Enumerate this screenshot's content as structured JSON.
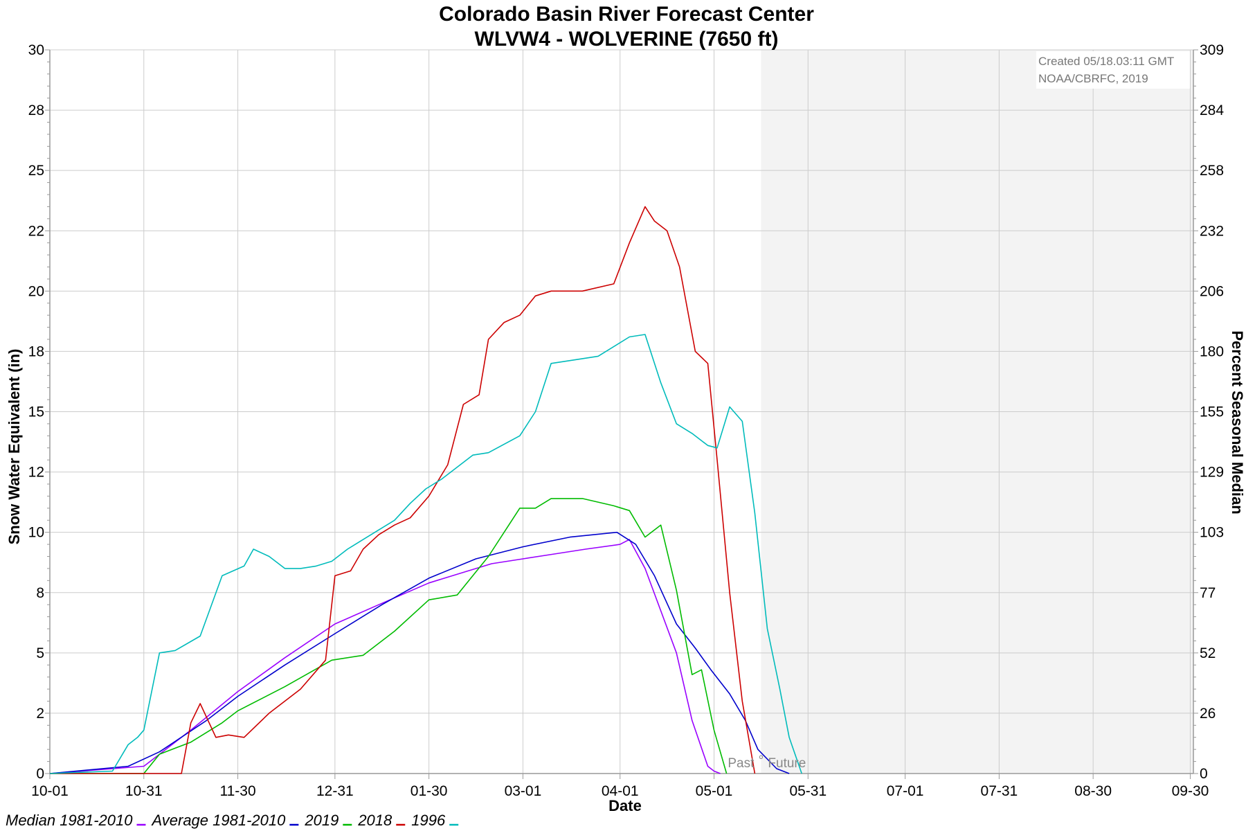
{
  "chart_data": {
    "type": "line",
    "title": "Colorado Basin River Forecast Center",
    "subtitle": "WLVW4 - WOLVERINE (7650 ft)",
    "xlabel": "Date",
    "ylabel": "Snow Water Equivalent (in)",
    "y2label": "Percent Seasonal Median",
    "xlim": [
      0,
      365
    ],
    "ylim": [
      0,
      30
    ],
    "x_ticks": [
      {
        "day": 0,
        "label": "10-01"
      },
      {
        "day": 30,
        "label": "10-31"
      },
      {
        "day": 60,
        "label": "11-30"
      },
      {
        "day": 91,
        "label": "12-31"
      },
      {
        "day": 121,
        "label": "01-30"
      },
      {
        "day": 151,
        "label": "03-01"
      },
      {
        "day": 182,
        "label": "04-01"
      },
      {
        "day": 212,
        "label": "05-01"
      },
      {
        "day": 242,
        "label": "05-31"
      },
      {
        "day": 273,
        "label": "07-01"
      },
      {
        "day": 303,
        "label": "07-31"
      },
      {
        "day": 333,
        "label": "08-30"
      },
      {
        "day": 364,
        "label": "09-30"
      }
    ],
    "y_ticks": [
      {
        "value": 0,
        "label": "0"
      },
      {
        "value": 2.5,
        "label": "2"
      },
      {
        "value": 5,
        "label": "5"
      },
      {
        "value": 7.5,
        "label": "8"
      },
      {
        "value": 10,
        "label": "10"
      },
      {
        "value": 12.5,
        "label": "12"
      },
      {
        "value": 15,
        "label": "15"
      },
      {
        "value": 17.5,
        "label": "18"
      },
      {
        "value": 20,
        "label": "20"
      },
      {
        "value": 22.5,
        "label": "22"
      },
      {
        "value": 25,
        "label": "25"
      },
      {
        "value": 27.5,
        "label": "28"
      },
      {
        "value": 30,
        "label": "30"
      }
    ],
    "y2_ticks": [
      {
        "value": 0,
        "label": "0"
      },
      {
        "value": 2.5,
        "label": "26"
      },
      {
        "value": 5,
        "label": "52"
      },
      {
        "value": 7.5,
        "label": "77"
      },
      {
        "value": 10,
        "label": "103"
      },
      {
        "value": 12.5,
        "label": "129"
      },
      {
        "value": 15,
        "label": "155"
      },
      {
        "value": 17.5,
        "label": "180"
      },
      {
        "value": 20,
        "label": "206"
      },
      {
        "value": 22.5,
        "label": "232"
      },
      {
        "value": 25,
        "label": "258"
      },
      {
        "value": 27.5,
        "label": "284"
      },
      {
        "value": 30,
        "label": "309"
      }
    ],
    "grid": true,
    "future_shading_start_day": 227,
    "past_label": "Past",
    "future_label": "Future",
    "annotation": [
      "Created 05/18.03:11 GMT",
      "NOAA/CBRFC, 2019"
    ],
    "series": [
      {
        "name": "Median 1981-2010",
        "color": "#9900ff",
        "x": [
          0,
          30,
          45,
          60,
          75,
          91,
          105,
          121,
          131,
          141,
          151,
          161,
          171,
          182,
          185,
          190,
          200,
          205,
          210,
          212,
          214
        ],
        "y": [
          0,
          0.3,
          1.8,
          3.4,
          4.8,
          6.2,
          7.0,
          7.9,
          8.3,
          8.7,
          8.9,
          9.1,
          9.3,
          9.5,
          9.7,
          8.5,
          5.0,
          2.2,
          0.3,
          0.1,
          0
        ]
      },
      {
        "name": "Average 1981-2010",
        "color": "#0000cc",
        "x": [
          0,
          25,
          35,
          50,
          60,
          75,
          91,
          106,
          121,
          136,
          151,
          166,
          181,
          187,
          193,
          200,
          206,
          211,
          217,
          222,
          226,
          232,
          236
        ],
        "y": [
          0,
          0.3,
          0.9,
          2.2,
          3.2,
          4.5,
          5.8,
          7.0,
          8.1,
          8.9,
          9.4,
          9.8,
          10.0,
          9.5,
          8.2,
          6.2,
          5.2,
          4.3,
          3.3,
          2.2,
          1.0,
          0.2,
          0
        ]
      },
      {
        "name": "2019",
        "color": "#00bb00",
        "x": [
          0,
          30,
          35,
          45,
          55,
          60,
          75,
          90,
          100,
          110,
          121,
          130,
          140,
          150,
          155,
          160,
          170,
          180,
          185,
          190,
          195,
          200,
          205,
          208,
          212,
          216
        ],
        "y": [
          0,
          0,
          0.8,
          1.3,
          2.1,
          2.6,
          3.6,
          4.7,
          4.9,
          5.9,
          7.2,
          7.4,
          9.0,
          11.0,
          11.0,
          11.4,
          11.4,
          11.1,
          10.9,
          9.8,
          10.3,
          7.6,
          4.1,
          4.3,
          1.8,
          0
        ]
      },
      {
        "name": "2018",
        "color": "#cc0000",
        "x": [
          0,
          42,
          45,
          48,
          53,
          57,
          62,
          70,
          80,
          88,
          91,
          96,
          100,
          105,
          110,
          115,
          121,
          127,
          132,
          137,
          140,
          145,
          150,
          155,
          160,
          170,
          180,
          185,
          190,
          193,
          197,
          201,
          206,
          210,
          213,
          217,
          221,
          225
        ],
        "y": [
          0,
          0,
          2.1,
          2.9,
          1.5,
          1.6,
          1.5,
          2.5,
          3.5,
          4.7,
          8.2,
          8.4,
          9.3,
          9.9,
          10.3,
          10.6,
          11.5,
          12.8,
          15.3,
          15.7,
          18.0,
          18.7,
          19.0,
          19.8,
          20.0,
          20.0,
          20.3,
          22.0,
          23.5,
          22.9,
          22.5,
          21.0,
          17.5,
          17.0,
          13.0,
          7.5,
          3.0,
          0
        ]
      },
      {
        "name": "1996",
        "color": "#00bbbb",
        "x": [
          0,
          20,
          25,
          28,
          30,
          35,
          40,
          48,
          55,
          62,
          65,
          70,
          75,
          80,
          85,
          90,
          95,
          100,
          105,
          110,
          115,
          120,
          125,
          130,
          135,
          140,
          150,
          155,
          160,
          170,
          175,
          185,
          190,
          195,
          200,
          205,
          210,
          213,
          217,
          221,
          225,
          229,
          233,
          236,
          240
        ],
        "y": [
          0,
          0.1,
          1.2,
          1.5,
          1.8,
          5.0,
          5.1,
          5.7,
          8.2,
          8.6,
          9.3,
          9.0,
          8.5,
          8.5,
          8.6,
          8.8,
          9.3,
          9.7,
          10.1,
          10.5,
          11.2,
          11.8,
          12.2,
          12.7,
          13.2,
          13.3,
          14.0,
          15.0,
          17.0,
          17.2,
          17.3,
          18.1,
          18.2,
          16.2,
          14.5,
          14.1,
          13.6,
          13.5,
          15.2,
          14.6,
          10.8,
          6.0,
          3.5,
          1.5,
          0
        ]
      }
    ]
  },
  "timestamp": {
    "line1": "Created 05/18.03:11 GMT",
    "line2": "NOAA/CBRFC, 2019"
  },
  "divider": {
    "past": "Past",
    "future": "Future"
  }
}
